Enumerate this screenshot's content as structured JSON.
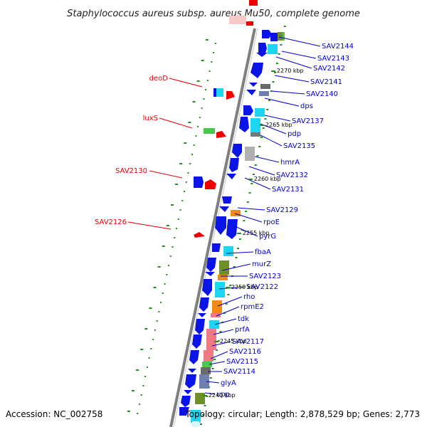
{
  "title": "Staphylococcus aureus subsp. aureus Mu50, complete genome",
  "accession_text": "Accession: NC_002758",
  "summary_text": "Topology: circular; Length: 2,878,529 bp; Genes: 2,773",
  "colors": {
    "backbone": "#7f7f7f",
    "gene_blue": "#0a14e6",
    "right_label": "#0000cc",
    "left_label": "#e00000",
    "rna_red": "#ee0000",
    "dot_green": "#1f8f1f",
    "cyan": "#1ad6f0",
    "olive": "#6f8f2a",
    "orange": "#f08a10",
    "salmon": "#f07a84",
    "slate": "#6f7fb0",
    "gray": "#9a9a9a",
    "light_green": "#4ac84a"
  },
  "kbp_markers": [
    "2270 kbp",
    "2265 kbp",
    "2260 kbp",
    "2255 kbp",
    "2250 kbp",
    "2245 kbp",
    "2240 kbp"
  ],
  "right_labels": [
    "SAV2144",
    "SAV2143",
    "SAV2142",
    "SAV2141",
    "SAV2140",
    "dps",
    "SAV2137",
    "pdp",
    "SAV2135",
    "hmrA",
    "SAV2132",
    "SAV2131",
    "SAV2129",
    "rpoE",
    "pyrG",
    "fbaA",
    "murZ",
    "SAV2123",
    "SAV2122",
    "rho",
    "rpmE2",
    "tdk",
    "prfA",
    "SAV2117",
    "SAV2116",
    "SAV2115",
    "SAV2114",
    "glyA",
    "upp"
  ],
  "left_labels": [
    "deoD",
    "luxS",
    "SAV2130",
    "SAV2126"
  ]
}
